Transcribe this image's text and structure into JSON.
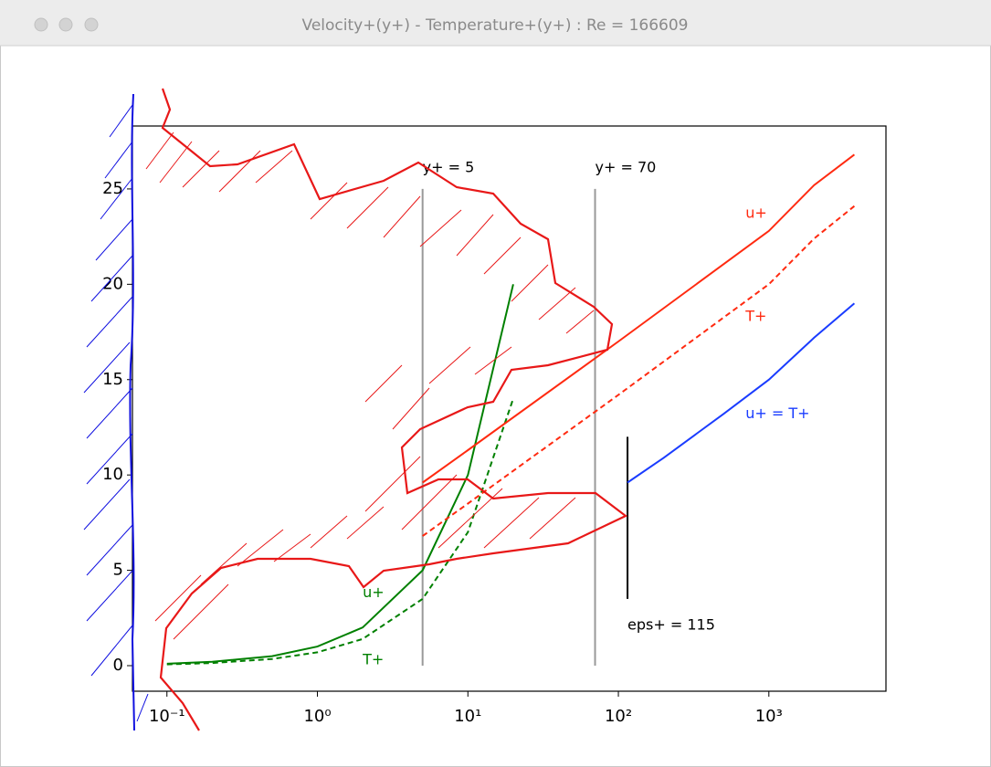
{
  "window": {
    "title": "Velocity+(y+) - Temperature+(y+) : Re = 166609"
  },
  "chart_data": {
    "type": "line",
    "xscale": "log",
    "xlim": [
      0.059,
      6000
    ],
    "ylim": [
      -1.34,
      28.3
    ],
    "xticks": [
      {
        "value": 0.1,
        "label": "10⁻¹"
      },
      {
        "value": 1,
        "label": "10⁰"
      },
      {
        "value": 10,
        "label": "10¹"
      },
      {
        "value": 100,
        "label": "10²"
      },
      {
        "value": 1000,
        "label": "10³"
      }
    ],
    "yticks": [
      0,
      5,
      10,
      15,
      20,
      25
    ],
    "series": [
      {
        "color": "#008000",
        "dashed": false,
        "x": [
          0.1,
          0.2,
          0.5,
          1,
          2,
          5,
          10,
          20
        ],
        "values": [
          0.1,
          0.2,
          0.5,
          1,
          2,
          5,
          10,
          20
        ]
      },
      {
        "color": "#008000",
        "dashed": true,
        "x": [
          0.1,
          0.2,
          0.5,
          1,
          2,
          5,
          10,
          20
        ],
        "values": [
          0.07,
          0.14,
          0.35,
          0.7,
          1.4,
          3.5,
          7,
          14
        ]
      },
      {
        "color": "#ff2a10",
        "dashed": false,
        "x": [
          5,
          10,
          100,
          1000,
          2000,
          3700
        ],
        "values": [
          9.6,
          11.3,
          17.0,
          22.8,
          25.2,
          26.8
        ]
      },
      {
        "color": "#ff2a10",
        "dashed": true,
        "x": [
          5,
          10,
          100,
          1000,
          2000,
          3700
        ],
        "values": [
          6.8,
          8.5,
          14.2,
          20.0,
          22.4,
          24.1
        ]
      },
      {
        "color": "#1a3cff",
        "dashed": false,
        "x": [
          115,
          200,
          500,
          1000,
          2000,
          3700
        ],
        "values": [
          9.6,
          10.9,
          13.2,
          15.0,
          17.2,
          19.0
        ]
      }
    ],
    "vlines": [
      {
        "x": 5,
        "ymin": 0,
        "ymax": 25,
        "color": "#999999"
      },
      {
        "x": 70,
        "ymin": 0,
        "ymax": 25,
        "color": "#999999"
      },
      {
        "x": 115,
        "ymin": 3.5,
        "ymax": 12,
        "color": "#000000"
      }
    ],
    "annotations": [
      {
        "text": "y+ = 5",
        "x": 5,
        "y": 26.1,
        "color": "#000000"
      },
      {
        "text": "y+ = 70",
        "x": 70,
        "y": 26.1,
        "color": "#000000"
      },
      {
        "text": "eps+ = 115",
        "x": 115,
        "y": 2.1,
        "color": "#000000"
      },
      {
        "text": "u+",
        "x": 700,
        "y": 23.7,
        "color": "#ff2a10"
      },
      {
        "text": "T+",
        "x": 700,
        "y": 18.3,
        "color": "#ff2a10"
      },
      {
        "text": "u+ = T+",
        "x": 700,
        "y": 13.2,
        "color": "#1a3cff"
      },
      {
        "text": "u+",
        "x": 2,
        "y": 3.8,
        "color": "#008000"
      },
      {
        "text": "T+",
        "x": 2,
        "y": 0.3,
        "color": "#008000"
      }
    ]
  }
}
